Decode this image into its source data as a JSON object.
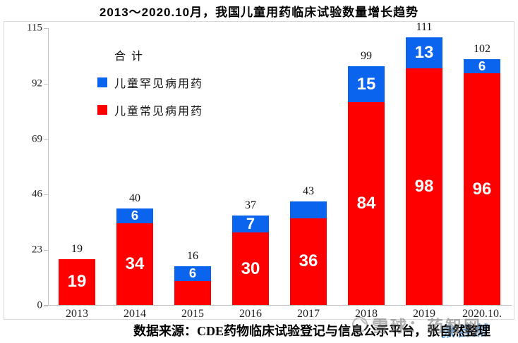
{
  "title": "2013～2020.10月，我国儿童用药临床试验数量增长趋势",
  "legend": {
    "total_label": "合 计",
    "rare_label": "儿童罕见病用药",
    "common_label": "儿童常见病用药"
  },
  "source": "数据来源：CDE药物临床试验登记与信息公示平台，张自然整理",
  "watermarks": {
    "zhang_text": "张自然",
    "zhang_color": "#5b9bd5",
    "xueqiu_text": "雪球：药智网"
  },
  "colors": {
    "common_red": "#fe0000",
    "rare_blue": "#0a64ee",
    "axis_gray": "#bfbfbf",
    "border_gray": "#d9d9d9"
  },
  "chart_data": {
    "type": "bar",
    "stacked": true,
    "title": "2013～2020.10月，我国儿童用药临床试验数量增长趋势",
    "categories": [
      "2013",
      "2014",
      "2015",
      "2016",
      "2017",
      "2018",
      "2019",
      "2020.10."
    ],
    "series": [
      {
        "name": "儿童常见病用药",
        "color": "#fe0000",
        "values": [
          19,
          34,
          10,
          30,
          36,
          84,
          98,
          96
        ],
        "shown_labels": [
          "19",
          "34",
          "",
          "30",
          "36",
          "84",
          "98",
          "96"
        ]
      },
      {
        "name": "儿童罕见病用药",
        "color": "#0a64ee",
        "values": [
          0,
          6,
          6,
          7,
          7,
          15,
          13,
          6
        ],
        "shown_labels": [
          "",
          "6",
          "6",
          "7",
          "",
          "15",
          "13",
          "6"
        ]
      }
    ],
    "totals": [
      19,
      40,
      16,
      37,
      43,
      99,
      111,
      102
    ],
    "y_ticks": [
      0,
      23,
      46,
      69,
      92,
      115
    ],
    "ylim": [
      0,
      115
    ],
    "grid": false,
    "legend_position": "top-left"
  }
}
